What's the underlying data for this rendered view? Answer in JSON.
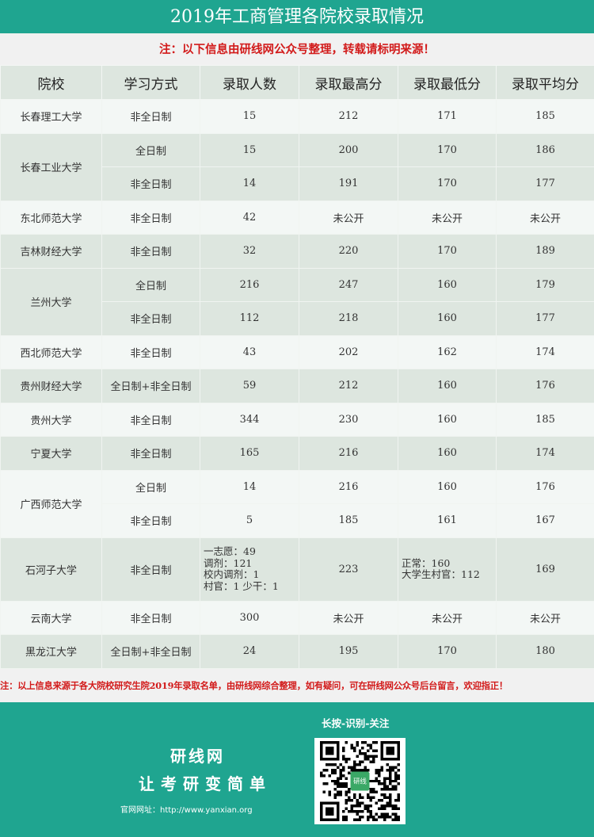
{
  "title": "2019年工商管理各院校录取情况",
  "note_top": "注：以下信息由研线网公众号整理，转载请标明来源！",
  "headers": [
    "院校",
    "学习方式",
    "录取人数",
    "录取最高分",
    "录取最低分",
    "录取平均分"
  ],
  "schools": [
    {
      "name": "长春理工大学",
      "shade": false,
      "rows": [
        [
          "非全日制",
          "15",
          "212",
          "171",
          "185"
        ]
      ]
    },
    {
      "name": "长春工业大学",
      "shade": true,
      "rows": [
        [
          "全日制",
          "15",
          "200",
          "170",
          "186"
        ],
        [
          "非全日制",
          "14",
          "191",
          "170",
          "177"
        ]
      ]
    },
    {
      "name": "东北师范大学",
      "shade": false,
      "rows": [
        [
          "非全日制",
          "42",
          "未公开",
          "未公开",
          "未公开"
        ]
      ]
    },
    {
      "name": "吉林财经大学",
      "shade": true,
      "rows": [
        [
          "非全日制",
          "32",
          "220",
          "170",
          "189"
        ]
      ]
    },
    {
      "name": "兰州大学",
      "shade": true,
      "rows": [
        [
          "全日制",
          "216",
          "247",
          "160",
          "179"
        ],
        [
          "非全日制",
          "112",
          "218",
          "160",
          "177"
        ]
      ]
    },
    {
      "name": "西北师范大学",
      "shade": false,
      "rows": [
        [
          "非全日制",
          "43",
          "202",
          "162",
          "174"
        ]
      ]
    },
    {
      "name": "贵州财经大学",
      "shade": true,
      "rows": [
        [
          "全日制+非全日制",
          "59",
          "212",
          "160",
          "176"
        ]
      ]
    },
    {
      "name": "贵州大学",
      "shade": false,
      "rows": [
        [
          "非全日制",
          "344",
          "230",
          "160",
          "185"
        ]
      ]
    },
    {
      "name": "宁夏大学",
      "shade": true,
      "rows": [
        [
          "非全日制",
          "165",
          "216",
          "160",
          "174"
        ]
      ]
    },
    {
      "name": "广西师范大学",
      "shade": false,
      "rows": [
        [
          "全日制",
          "14",
          "216",
          "160",
          "176"
        ],
        [
          "非全日制",
          "5",
          "185",
          "161",
          "167"
        ]
      ]
    },
    {
      "name": "石河子大学",
      "shade": true,
      "tall": true,
      "rows": [
        [
          "非全日制",
          "一志愿：49\n调剂：121\n校内调剂：1\n村官：1 少干：1",
          "223",
          "正常：160\n大学生村官：112",
          "169"
        ]
      ]
    },
    {
      "name": "云南大学",
      "shade": false,
      "rows": [
        [
          "非全日制",
          "300",
          "未公开",
          "未公开",
          "未公开"
        ]
      ]
    },
    {
      "name": "黑龙江大学",
      "shade": true,
      "rows": [
        [
          "全日制+非全日制",
          "24",
          "195",
          "170",
          "180"
        ]
      ]
    }
  ],
  "note_bottom": "注：以上信息来源于各大院校研究生院2019年录取名单，由研线网综合整理，如有疑问，可在研线网公众号后台留言，欢迎指正！",
  "footer": {
    "brand": "研线网",
    "slogan": "让考研变简单",
    "site": "官网网址：http://www.yanxian.org",
    "scan": "长按-识别-关注",
    "qr_logo": "研线"
  },
  "colors": {
    "brand": "#1fa590",
    "note": "#d21a1a",
    "row_shade": "#dde6df",
    "row_light": "#f3f7f5"
  }
}
